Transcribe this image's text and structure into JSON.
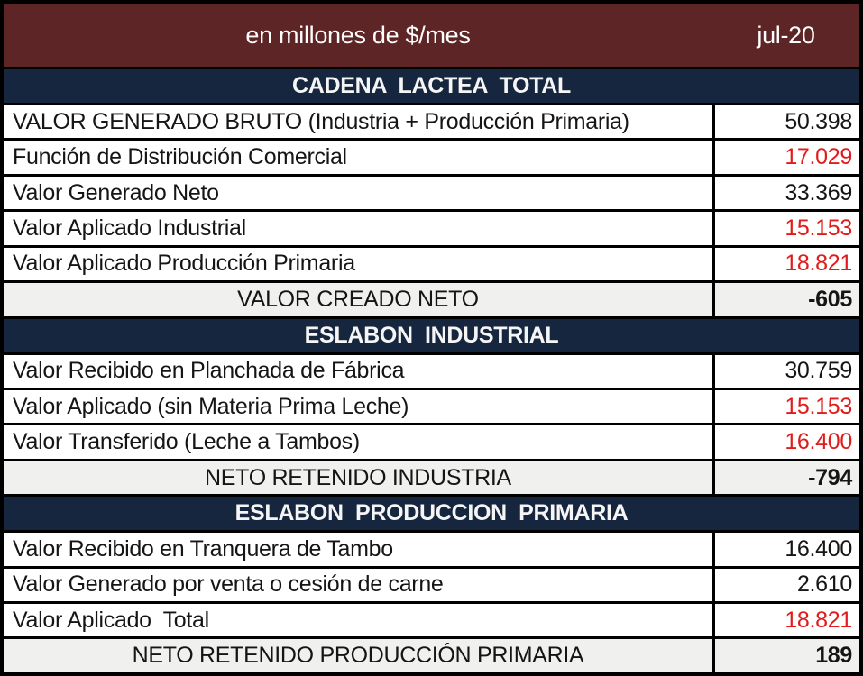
{
  "header": {
    "title": "en millones de $/mes",
    "period": "jul-20"
  },
  "colors": {
    "maroon": "#5E2526",
    "navy": "#16263E",
    "red": "#E01B1B",
    "subtotal_bg": "#F0F0EE"
  },
  "sections": [
    {
      "title": "CADENA  LACTEA  TOTAL",
      "rows": [
        {
          "label": "VALOR GENERADO BRUTO (Industria + Producción Primaria)",
          "value": "50.398",
          "color": "black"
        },
        {
          "label": "Función de Distribución Comercial",
          "value": "17.029",
          "color": "red"
        },
        {
          "label": "Valor Generado Neto",
          "value": "33.369",
          "color": "black"
        },
        {
          "label": "Valor Aplicado Industrial",
          "value": "15.153",
          "color": "red"
        },
        {
          "label": "Valor Aplicado Producción Primaria",
          "value": "18.821",
          "color": "red"
        }
      ],
      "subtotal": {
        "label": "VALOR CREADO NETO",
        "value": "-605"
      }
    },
    {
      "title": "ESLABON  INDUSTRIAL",
      "rows": [
        {
          "label": "Valor Recibido en Planchada de Fábrica",
          "value": "30.759",
          "color": "black"
        },
        {
          "label": "Valor Aplicado (sin Materia Prima Leche)",
          "value": "15.153",
          "color": "red"
        },
        {
          "label": "Valor Transferido (Leche a Tambos)",
          "value": "16.400",
          "color": "red"
        }
      ],
      "subtotal": {
        "label": "NETO RETENIDO INDUSTRIA",
        "value": "-794"
      }
    },
    {
      "title": "ESLABON  PRODUCCION  PRIMARIA",
      "rows": [
        {
          "label": "Valor Recibido en Tranquera de Tambo",
          "value": "16.400",
          "color": "black"
        },
        {
          "label": "Valor Generado por venta o cesión de carne",
          "value": "2.610",
          "color": "black"
        },
        {
          "label": "Valor Aplicado  Total",
          "value": "18.821",
          "color": "red"
        }
      ],
      "subtotal": {
        "label": "NETO RETENIDO PRODUCCIÓN PRIMARIA",
        "value": "189"
      }
    }
  ]
}
